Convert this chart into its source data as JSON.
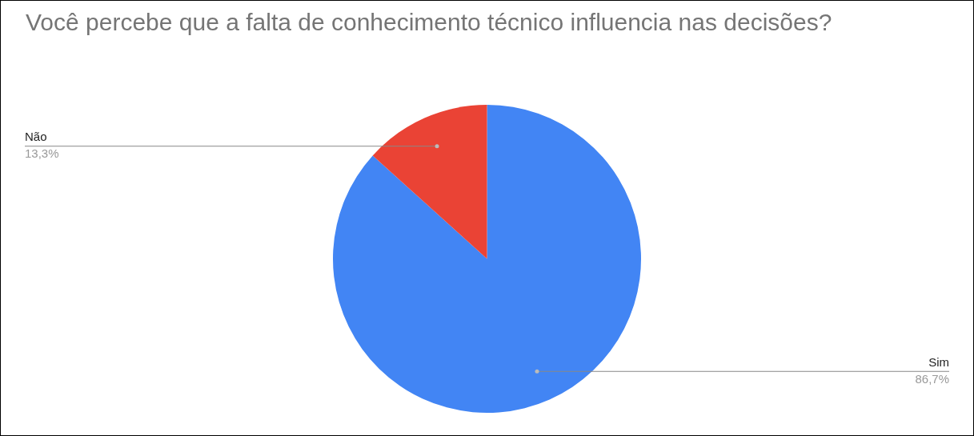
{
  "chart_data": {
    "type": "pie",
    "title": "Você percebe que a falta de conhecimento técnico influencia nas decisões?",
    "categories": [
      "Sim",
      "Não"
    ],
    "values": [
      86.7,
      13.3
    ],
    "colors": [
      "#4285f4",
      "#ea4335"
    ],
    "value_labels": [
      "86,7%",
      "13,3%"
    ],
    "legend": false
  }
}
